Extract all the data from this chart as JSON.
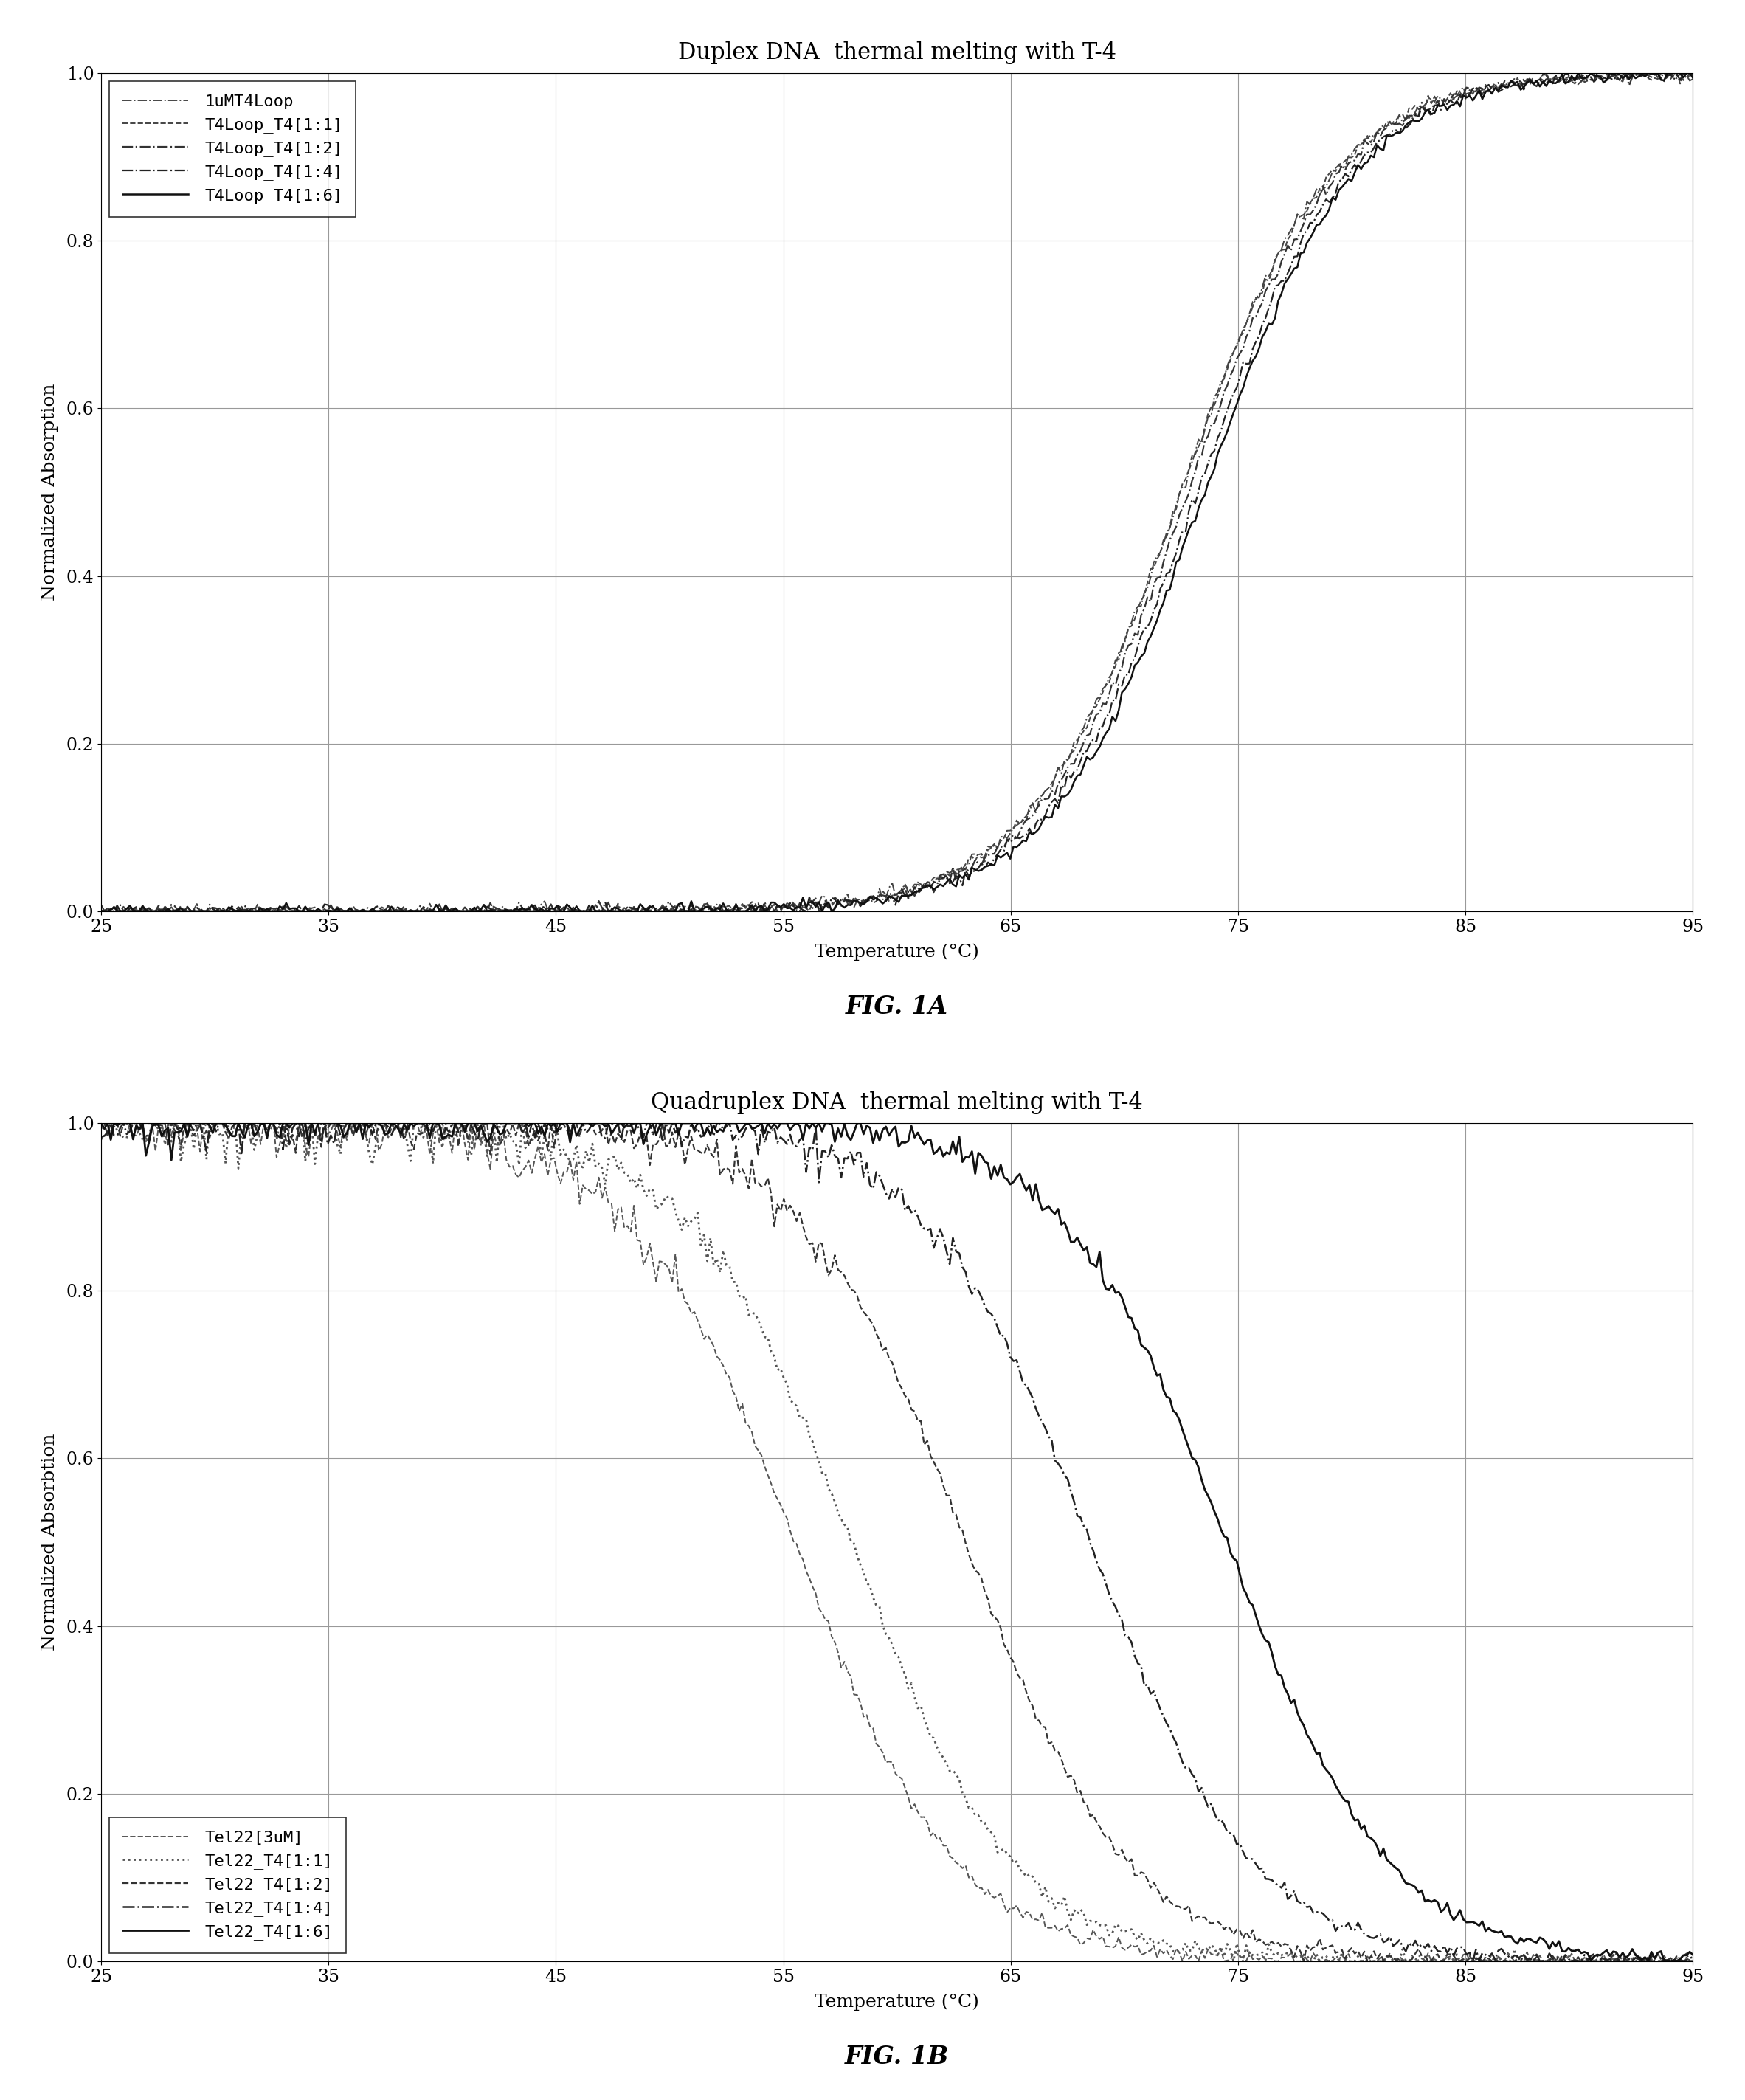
{
  "fig1a": {
    "title": "Duplex DNA  thermal melting with T-4",
    "xlabel": "Temperature (°C)",
    "ylabel": "Normalized Absorption",
    "xlim": [
      25,
      95
    ],
    "ylim": [
      0,
      1
    ],
    "xticks": [
      25,
      35,
      45,
      55,
      65,
      75,
      85,
      95
    ],
    "yticks": [
      0,
      0.2,
      0.4,
      0.6,
      0.8,
      1
    ],
    "caption": "FIG. 1A",
    "series": [
      {
        "label": "1uMT4Loop",
        "linestyle": "-.",
        "color": "#444444",
        "lw": 1.4,
        "tm": 72.5,
        "k": 0.3
      },
      {
        "label": "T4Loop_T4[1:1]",
        "linestyle": "--",
        "color": "#444444",
        "lw": 1.4,
        "tm": 72.5,
        "k": 0.3
      },
      {
        "label": "T4Loop_T4[1:2]",
        "linestyle": "-.",
        "color": "#333333",
        "lw": 1.6,
        "tm": 72.8,
        "k": 0.3
      },
      {
        "label": "T4Loop_T4[1:4]",
        "linestyle": "-.",
        "color": "#222222",
        "lw": 1.6,
        "tm": 73.2,
        "k": 0.3
      },
      {
        "label": "T4Loop_T4[1:6]",
        "linestyle": "-",
        "color": "#111111",
        "lw": 1.8,
        "tm": 73.5,
        "k": 0.3
      }
    ]
  },
  "fig1b": {
    "title": "Quadruplex DNA  thermal melting with T-4",
    "xlabel": "Temperature (°C)",
    "ylabel": "Normalized Absorbtion",
    "xlim": [
      25,
      95
    ],
    "ylim": [
      0,
      1
    ],
    "xticks": [
      25,
      35,
      45,
      55,
      65,
      75,
      85,
      95
    ],
    "yticks": [
      0,
      0.2,
      0.4,
      0.6,
      0.8,
      1
    ],
    "caption": "FIG. 1B",
    "series": [
      {
        "label": "Tel22[3uM]",
        "linestyle": "--",
        "color": "#555555",
        "lw": 1.4,
        "tm": 55.5,
        "k": 0.28
      },
      {
        "label": "Tel22_T4[1:1]",
        "linestyle": ":",
        "color": "#555555",
        "lw": 2.0,
        "tm": 58.0,
        "k": 0.28
      },
      {
        "label": "Tel22_T4[1:2]",
        "linestyle": "--",
        "color": "#333333",
        "lw": 1.6,
        "tm": 63.0,
        "k": 0.28
      },
      {
        "label": "Tel22_T4[1:4]",
        "linestyle": "-.",
        "color": "#222222",
        "lw": 1.8,
        "tm": 68.5,
        "k": 0.28
      },
      {
        "label": "Tel22_T4[1:6]",
        "linestyle": "-",
        "color": "#111111",
        "lw": 2.0,
        "tm": 74.5,
        "k": 0.28
      }
    ]
  },
  "bg_color": "#ffffff",
  "grid_color": "#999999",
  "legend_fontsize": 16,
  "axis_fontsize": 18,
  "title_fontsize": 22,
  "tick_fontsize": 17,
  "caption_fontsize": 24
}
